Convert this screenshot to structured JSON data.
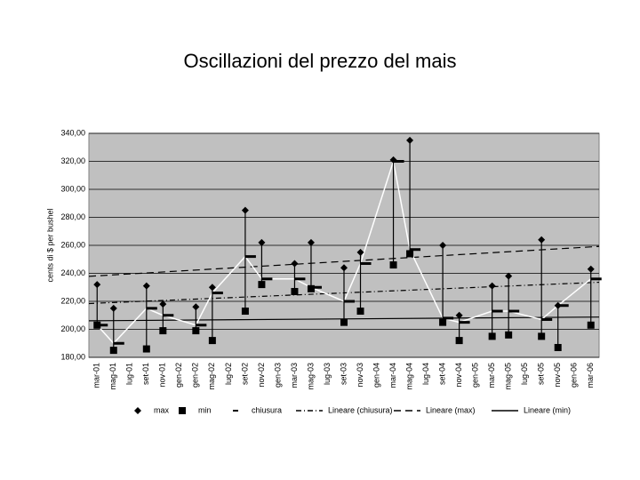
{
  "chart_data": {
    "type": "hlc",
    "title": "Oscillazioni del prezzo del mais",
    "y_label": "cents di $ per bushel",
    "categories": [
      "mar-01",
      "mag-01",
      "lug-01",
      "set-01",
      "nov-01",
      "gen-02",
      "gen-02",
      "mag-02",
      "lug-02",
      "set-02",
      "nov-02",
      "gen-03",
      "mar-03",
      "mag-03",
      "lug-03",
      "set-03",
      "nov-03",
      "gen-04",
      "mar-04",
      "mag-04",
      "lug-04",
      "set-04",
      "nov-04",
      "gen-05",
      "mar-05",
      "mag-05",
      "lug-05",
      "set-05",
      "nov-05",
      "gen-06",
      "mar-06"
    ],
    "series": [
      {
        "name": "max",
        "trendline": "Lineare (max)",
        "color": "#000000",
        "values": [
          232,
          215,
          null,
          231,
          218,
          null,
          216,
          230,
          null,
          285,
          262,
          null,
          247,
          262,
          null,
          244,
          255,
          null,
          321,
          335,
          null,
          260,
          210,
          null,
          231,
          238,
          null,
          264,
          217,
          null,
          243
        ]
      },
      {
        "name": "min",
        "trendline": "Lineare (min)",
        "color": "#000000",
        "values": [
          203,
          185,
          null,
          186,
          199,
          null,
          199,
          192,
          null,
          213,
          232,
          null,
          227,
          229,
          null,
          205,
          213,
          null,
          246,
          254,
          null,
          205,
          192,
          null,
          195,
          196,
          null,
          195,
          187,
          null,
          203
        ]
      },
      {
        "name": "chiusura",
        "trendline": "Lineare (chiusura)",
        "color": "#ffffff",
        "values": [
          203,
          190,
          null,
          215,
          210,
          null,
          203,
          226,
          null,
          252,
          236,
          null,
          236,
          230,
          null,
          220,
          247,
          null,
          320,
          257,
          null,
          208,
          205,
          null,
          213,
          213,
          null,
          207,
          217,
          null,
          236
        ]
      }
    ],
    "ylim": [
      180,
      340
    ],
    "yticks": [
      {
        "value": 180,
        "label": "180,00"
      },
      {
        "value": 200,
        "label": "200,00"
      },
      {
        "value": 220,
        "label": "220,00"
      },
      {
        "value": 240,
        "label": "240,00"
      },
      {
        "value": 260,
        "label": "260,00"
      },
      {
        "value": 280,
        "label": "280,00"
      },
      {
        "value": 300,
        "label": "300,00"
      },
      {
        "value": 320,
        "label": "320,00"
      },
      {
        "value": 340,
        "label": "340,00"
      }
    ],
    "grid": true,
    "plot_background": "#c0c0c0",
    "legend": "bottom"
  }
}
